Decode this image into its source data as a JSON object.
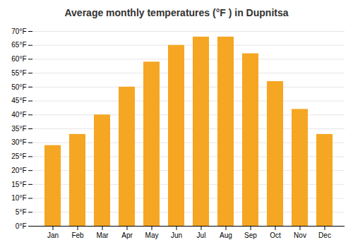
{
  "chart_data": {
    "type": "bar",
    "title": "Average monthly temperatures (°F ) in Dupnitsa",
    "categories": [
      "Jan",
      "Feb",
      "Mar",
      "Apr",
      "May",
      "Jun",
      "Jul",
      "Aug",
      "Sep",
      "Oct",
      "Nov",
      "Dec"
    ],
    "values": [
      29,
      33,
      40,
      50,
      59,
      65,
      68,
      68,
      62,
      52,
      42,
      33
    ],
    "color": "#F5A623",
    "ylim": [
      0,
      70
    ],
    "yticks": [
      {
        "value": 0,
        "label": "0°F"
      },
      {
        "value": 5,
        "label": "5°F"
      },
      {
        "value": 10,
        "label": "10°F"
      },
      {
        "value": 15,
        "label": "15°F"
      },
      {
        "value": 20,
        "label": "20°F"
      },
      {
        "value": 25,
        "label": "25°F"
      },
      {
        "value": 30,
        "label": "30°F"
      },
      {
        "value": 35,
        "label": "35°F"
      },
      {
        "value": 40,
        "label": "40°F"
      },
      {
        "value": 45,
        "label": "45°F"
      },
      {
        "value": 50,
        "label": "50°F"
      },
      {
        "value": 55,
        "label": "55°F"
      },
      {
        "value": 60,
        "label": "60°F"
      },
      {
        "value": 65,
        "label": "65°F"
      },
      {
        "value": 70,
        "label": "70°F"
      }
    ],
    "grid": true
  }
}
